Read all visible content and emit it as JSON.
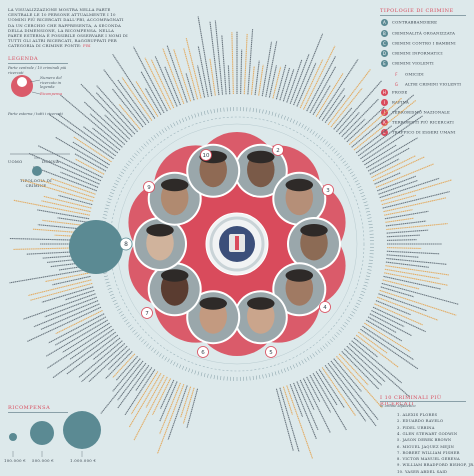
{
  "intro": {
    "text": "La visualizzazione mostra nella parte centrale le 10 persone attualmente i 10 uomini più ricercati dall'FBI, accompagnati da un cerchio che rappresenta, a seconda della dimensione, la ricompensa. Nella parte esterna è possibile osservare i nomi di tutti gli altri ricercati, raggruppati per categoria di crimine",
    "source_label": "Fonte:",
    "source": "FBI"
  },
  "legend": {
    "title": "Legenda",
    "sub1": "Parte centrale / 10 criminali più ricercati",
    "number_label": "Numero del ricercato in legenda",
    "reward_label": "Ricompensa",
    "sub2": "Parte esterna / tutti i ricercati",
    "male": "Uomo",
    "female": "Donna",
    "crime_type": "Tipologia di crimine"
  },
  "reward": {
    "title": "Ricompensa",
    "values": [
      "100.000 €",
      "500.000 €",
      "1.000.000 €"
    ]
  },
  "crime_types": {
    "title": "Tipologie di crimine",
    "items": [
      {
        "code": "A",
        "label": "Contrabbandiere",
        "style": "teal"
      },
      {
        "code": "B",
        "label": "Criminalità organizzata",
        "style": "teal"
      },
      {
        "code": "C",
        "label": "Crimini contro i bambini",
        "style": "teal"
      },
      {
        "code": "D",
        "label": "Crimini informatici",
        "style": "teal"
      },
      {
        "code": "E",
        "label": "Crimini violenti",
        "style": "teal"
      },
      {
        "code": "F",
        "label": "Omicidi",
        "style": "pale"
      },
      {
        "code": "G",
        "label": "Altri crimini violenti",
        "style": "pale"
      },
      {
        "code": "H",
        "label": "Frode",
        "style": "red"
      },
      {
        "code": "I",
        "label": "Rapina",
        "style": "red"
      },
      {
        "code": "J",
        "label": "Terrorismo nazionale",
        "style": "red"
      },
      {
        "code": "K",
        "label": "Terroristi più ricercati",
        "style": "red"
      },
      {
        "code": "L",
        "label": "Traffico di esseri umani",
        "style": "red"
      }
    ]
  },
  "top10": {
    "title": "I 10 criminali più ricercati",
    "subtitle": "in ordine alfabetico",
    "names": [
      "1. Alexis Flores",
      "2. Eduardo Ravelo",
      "3. Fidel Urbina",
      "4. Glen Stewart Godwin",
      "5. Jason Derek Brown",
      "6. Miguel Jaquez Mejin",
      "7. Robert William Fisher",
      "8. Victor Manuel Gerena",
      "9. William Bradford Bishop, Jr.",
      "10. Yaser Abdel Said"
    ]
  },
  "wheel": {
    "numbers": [
      "1",
      "2",
      "3",
      "4",
      "5",
      "6",
      "7",
      "8",
      "9",
      "10"
    ]
  },
  "colors": {
    "background": "#dde9eb",
    "red": "#d94b5c",
    "teal": "#5b8a93",
    "orange": "#e4a34f",
    "text": "#3b4650"
  }
}
